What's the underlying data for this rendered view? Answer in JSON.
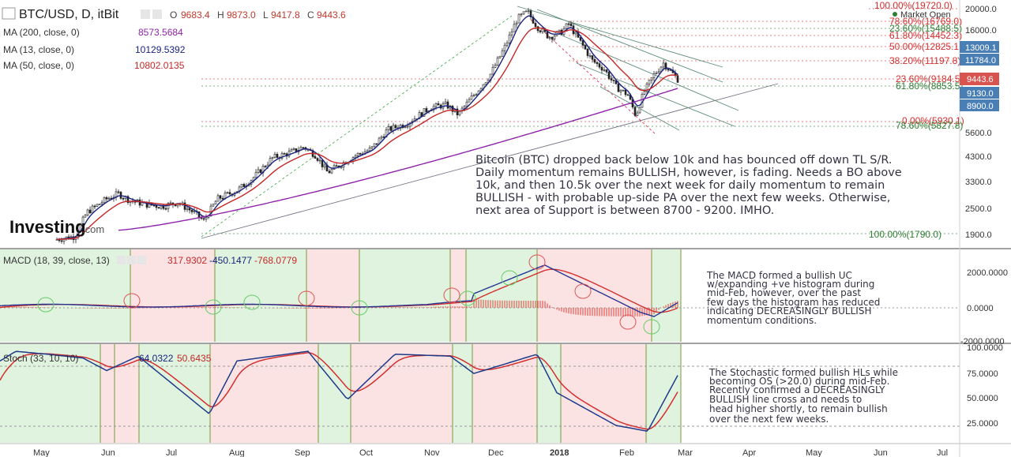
{
  "header": {
    "symbol": "BTC/USD, D, itBit",
    "o_label": "O",
    "o": "9683.4",
    "h_label": "H",
    "h": "9873.0",
    "l_label": "L",
    "l": "9417.8",
    "c_label": "C",
    "c": "9443.6",
    "market_status": "Market Open"
  },
  "ma_legend": [
    {
      "label": "MA (200, close, 0)",
      "value": "8573.5684",
      "color": "#8e24aa"
    },
    {
      "label": "MA (13, close, 0)",
      "value": "10129.5392",
      "color": "#1a237e"
    },
    {
      "label": "MA (50, close, 0)",
      "value": "10802.0135",
      "color": "#c62828"
    }
  ],
  "watermark": "Investing",
  "watermark_suffix": ".com",
  "price_axis": {
    "ticks": [
      "20000.0",
      "16000.0",
      "13000.0",
      "11000.0",
      "9000.0",
      "5600.0",
      "4300.0",
      "3300.0",
      "2500.0",
      "1900.0"
    ],
    "badges": [
      {
        "value": "13009.1",
        "color": "#4a7fb5"
      },
      {
        "value": "11784.0",
        "color": "#4a7fb5"
      },
      {
        "value": "9443.6",
        "color": "#d9534f"
      },
      {
        "value": "9130.0",
        "color": "#4a7fb5"
      },
      {
        "value": "8900.0",
        "color": "#4a7fb5"
      }
    ]
  },
  "fib_levels": [
    {
      "text": "100.00%(19720.0)",
      "color": "#d32f2f"
    },
    {
      "text": "78.60%(16769.0)",
      "color": "#d32f2f"
    },
    {
      "text": "23.60%(15488.5)",
      "color": "#2e7d32"
    },
    {
      "text": "61.80%(14452.3)",
      "color": "#d32f2f"
    },
    {
      "text": "50.00%(12825.1)",
      "color": "#d32f2f"
    },
    {
      "text": "38.20%(11197.8)",
      "color": "#d32f2f"
    },
    {
      "text": "23.60%(9184.5)",
      "color": "#d32f2f"
    },
    {
      "text": "61.80%(8853.5)",
      "color": "#2e7d32"
    },
    {
      "text": "0.00%(5930.1)",
      "color": "#d32f2f"
    },
    {
      "text": "78.60%(5827.8)",
      "color": "#2e7d32"
    },
    {
      "text": "100.00%(1790.0)",
      "color": "#2e7d32"
    }
  ],
  "main_note": [
    "Bitcoin (BTC) dropped back below 10k and has bounced off down TL S/R.",
    "Daily momentum remains BULLISH, however, is fading. Needs a BO above",
    "10k, and then 10.5k over the next week for daily momentum to remain",
    "BULLISH - with probable up-side PA over the next few weeks. Otherwise,",
    "next area of Support is between 8700 - 9200. IMHO."
  ],
  "macd": {
    "label": "MACD (18, 39, close, 13)",
    "v1": "317.9302",
    "v2": "-450.1477",
    "v3": "-768.0779",
    "axis_ticks": [
      "2000.0000",
      "0.0000",
      "-2000.0000"
    ],
    "note": [
      "The MACD formed a bullish UC",
      "w/expanding +ve histogram during",
      "mid-Feb, however, over the past",
      "few days the histogram has reduced",
      "indicating DECREASINGLY BULLISH",
      "momentum conditions."
    ]
  },
  "stoch": {
    "label": "Stoch (33, 10, 10)",
    "k": "64.0322",
    "d": "50.6435",
    "axis_ticks": [
      "100.0000",
      "75.0000",
      "50.0000",
      "25.0000"
    ],
    "note": [
      "The Stochastic formed bullish HLs while",
      "becoming OS (>20.0) during mid-Feb.",
      "Recently confirmed a DECREASINGLY",
      "BULLISH line cross and needs to",
      "head higher shortly, to remain bullish",
      "over the next few weeks."
    ]
  },
  "x_axis": [
    "May",
    "Jun",
    "Jul",
    "Aug",
    "Sep",
    "Oct",
    "Nov",
    "Dec",
    "2018",
    "Feb",
    "Mar",
    "Apr",
    "May",
    "Jun",
    "Jul"
  ],
  "chart_data": {
    "type": "candlestick",
    "title": "BTC/USD, D, itBit",
    "y_scale": "log",
    "ylim": [
      1700,
      21000
    ],
    "months": [
      "May",
      "Jun",
      "Jul",
      "Aug",
      "Sep",
      "Oct",
      "Nov",
      "Dec",
      "2018",
      "Feb",
      "Mar",
      "Apr",
      "May",
      "Jun",
      "Jul"
    ],
    "close_points": [
      [
        "May",
        1700
      ],
      [
        "Jun",
        2600
      ],
      [
        "Jun",
        2750
      ],
      [
        "Jul",
        2500
      ],
      [
        "Jul",
        2300
      ],
      [
        "Jul",
        2250
      ],
      [
        "Aug",
        2700
      ],
      [
        "Aug",
        3300
      ],
      [
        "Aug",
        4300
      ],
      [
        "Sep",
        4600
      ],
      [
        "Sep",
        3900
      ],
      [
        "Sep",
        3700
      ],
      [
        "Oct",
        4300
      ],
      [
        "Oct",
        5600
      ],
      [
        "Nov",
        6500
      ],
      [
        "Nov",
        7200
      ],
      [
        "Dec",
        11000
      ],
      [
        "Dec",
        17000
      ],
      [
        "Dec",
        19500
      ],
      [
        "2018",
        14000
      ],
      [
        "2018",
        13500
      ],
      [
        "2018",
        11000
      ],
      [
        "Feb",
        9000
      ],
      [
        "Feb",
        6500
      ],
      [
        "Feb",
        9500
      ],
      [
        "Feb",
        10500
      ],
      [
        "Feb",
        9443.6
      ]
    ],
    "ma200": [
      [
        "May",
        1800
      ],
      [
        "Aug",
        2300
      ],
      [
        "Oct",
        3300
      ],
      [
        "Dec",
        5500
      ],
      [
        "2018",
        7000
      ],
      [
        "Feb",
        8573.5684
      ]
    ],
    "ma50": [
      [
        "May",
        1750
      ],
      [
        "Jul",
        2500
      ],
      [
        "Sep",
        3600
      ],
      [
        "Nov",
        6000
      ],
      [
        "Dec",
        11000
      ],
      [
        "2018",
        14500
      ],
      [
        "Feb",
        10802.0135
      ]
    ],
    "ma13": [
      [
        "May",
        1750
      ],
      [
        "Jun",
        2700
      ],
      [
        "Jul",
        2400
      ],
      [
        "Sep",
        4300
      ],
      [
        "Nov",
        6800
      ],
      [
        "Dec",
        16500
      ],
      [
        "2018",
        14000
      ],
      [
        "Feb",
        10129.5392
      ]
    ],
    "macd_range": [
      -2000,
      2000
    ],
    "stoch_range": [
      0,
      100
    ]
  }
}
